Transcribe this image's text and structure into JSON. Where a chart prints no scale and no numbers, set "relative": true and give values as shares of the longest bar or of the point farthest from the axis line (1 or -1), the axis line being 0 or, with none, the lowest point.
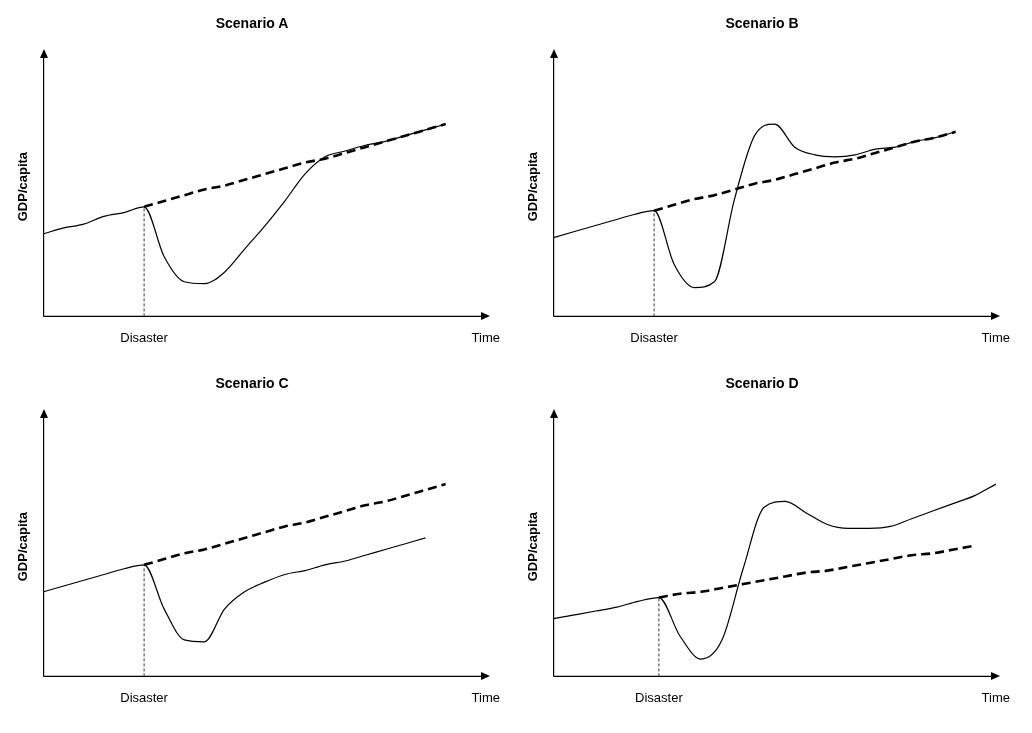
{
  "chart_data": [
    {
      "type": "line",
      "title": "Scenario A",
      "ylabel": "GDP/capita",
      "relative": true,
      "marker": "none",
      "categories": [
        null,
        null,
        null,
        null,
        null,
        "Disaster",
        null,
        null,
        null,
        null,
        null,
        null,
        null,
        null,
        null,
        null,
        null,
        null,
        null,
        null,
        null,
        null,
        "Time"
      ],
      "ref_lines": [
        {
          "axis": "x",
          "value": "Disaster",
          "line_style": "dashed"
        }
      ],
      "series": [
        {
          "color": "#000000",
          "line_style": "solid",
          "values": [
            0.43,
            0.46,
            0.48,
            0.52,
            0.54,
            0.57,
            0.31,
            0.18,
            0.17,
            0.23,
            0.35,
            0.47,
            0.6,
            0.74,
            0.83,
            0.86,
            0.89,
            0.91,
            0.94,
            0.97,
            1,
            null,
            null
          ]
        },
        {
          "color": "#000000",
          "line_style": "dashed",
          "values": [
            null,
            null,
            null,
            null,
            null,
            0.57,
            0.6,
            0.63,
            0.66,
            0.68,
            0.71,
            0.74,
            0.77,
            0.8,
            0.82,
            0.85,
            0.88,
            0.91,
            0.94,
            0.97,
            1,
            null,
            null
          ]
        }
      ]
    },
    {
      "type": "line",
      "title": "Scenario B",
      "ylabel": "GDP/capita",
      "relative": true,
      "marker": "none",
      "categories": [
        null,
        null,
        null,
        null,
        null,
        "Disaster",
        null,
        null,
        null,
        null,
        null,
        null,
        null,
        null,
        null,
        null,
        null,
        null,
        null,
        null,
        null,
        null,
        "Time"
      ],
      "ref_lines": [
        {
          "axis": "x",
          "value": "Disaster",
          "line_style": "dashed"
        }
      ],
      "series": [
        {
          "color": "#000000",
          "line_style": "solid",
          "values": [
            0.41,
            0.44,
            0.47,
            0.5,
            0.53,
            0.55,
            0.27,
            0.15,
            0.18,
            0.61,
            0.94,
            1,
            0.88,
            0.84,
            0.83,
            0.84,
            0.87,
            0.88,
            0.91,
            0.93,
            0.96,
            null,
            null
          ]
        },
        {
          "color": "#000000",
          "line_style": "dashed",
          "values": [
            null,
            null,
            null,
            null,
            null,
            0.55,
            0.58,
            0.61,
            0.63,
            0.66,
            0.69,
            0.71,
            0.74,
            0.77,
            0.8,
            0.82,
            0.85,
            0.88,
            0.91,
            0.93,
            0.96,
            null,
            null
          ]
        }
      ]
    },
    {
      "type": "line",
      "title": "Scenario C",
      "ylabel": "GDP/capita",
      "relative": true,
      "marker": "none",
      "categories": [
        null,
        null,
        null,
        null,
        null,
        "Disaster",
        null,
        null,
        null,
        null,
        null,
        null,
        null,
        null,
        null,
        null,
        null,
        null,
        null,
        null,
        null,
        null,
        "Time"
      ],
      "ref_lines": [
        {
          "axis": "x",
          "value": "Disaster",
          "line_style": "dashed"
        }
      ],
      "series": [
        {
          "color": "#000000",
          "line_style": "solid",
          "values": [
            0.44,
            0.47,
            0.5,
            0.53,
            0.56,
            0.58,
            0.35,
            0.19,
            0.18,
            0.35,
            0.44,
            0.49,
            0.53,
            0.55,
            0.58,
            0.6,
            0.63,
            0.66,
            0.69,
            0.72,
            null,
            null,
            null
          ]
        },
        {
          "color": "#000000",
          "line_style": "dashed",
          "values": [
            null,
            null,
            null,
            null,
            null,
            0.58,
            0.61,
            0.64,
            0.66,
            0.69,
            0.72,
            0.75,
            0.78,
            0.8,
            0.83,
            0.86,
            0.89,
            0.91,
            0.94,
            0.97,
            1,
            null,
            null
          ]
        }
      ]
    },
    {
      "type": "line",
      "title": "Scenario D",
      "ylabel": "GDP/capita",
      "relative": true,
      "marker": "none",
      "categories": [
        null,
        null,
        null,
        null,
        null,
        "Disaster",
        null,
        null,
        null,
        null,
        null,
        null,
        null,
        null,
        null,
        null,
        null,
        null,
        null,
        null,
        null,
        "Time"
      ],
      "ref_lines": [
        {
          "axis": "x",
          "value": "Disaster",
          "line_style": "dashed"
        }
      ],
      "series": [
        {
          "color": "#000000",
          "line_style": "solid",
          "values": [
            0.3,
            0.32,
            0.34,
            0.36,
            0.39,
            0.41,
            0.21,
            0.09,
            0.19,
            0.56,
            0.88,
            0.91,
            0.85,
            0.79,
            0.77,
            0.77,
            0.78,
            0.82,
            0.86,
            0.9,
            0.94,
            1
          ]
        },
        {
          "color": "#000000",
          "line_style": "dashed",
          "values": [
            null,
            null,
            null,
            null,
            null,
            0.41,
            0.43,
            0.44,
            0.46,
            0.48,
            0.5,
            0.52,
            0.54,
            0.55,
            0.57,
            0.59,
            0.61,
            0.63,
            0.64,
            0.66,
            0.68,
            null
          ]
        }
      ]
    }
  ]
}
